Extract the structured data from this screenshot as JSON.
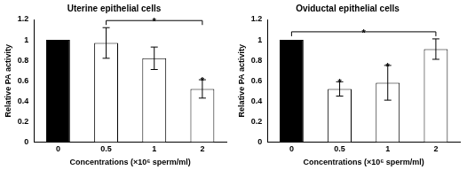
{
  "chart_data": [
    {
      "type": "bar",
      "title": "Uterine epithelial cells",
      "x_label": "Concentrations (×10⁶ sperm/ml)",
      "y_label": "Relative PA activity",
      "categories": [
        "0",
        "0.5",
        "1",
        "2"
      ],
      "values": [
        1,
        0.97,
        0.82,
        0.52
      ],
      "errors": [
        0,
        0.15,
        0.11,
        0.09
      ],
      "colors": [
        "#000000",
        "#ffffff",
        "#ffffff",
        "#ffffff"
      ],
      "ylim": [
        0,
        1.2
      ],
      "yticks": [
        0,
        0.2,
        0.4,
        0.6,
        0.8,
        1,
        1.2
      ],
      "grid": false,
      "annotations": [
        {
          "category": "2",
          "text": "*"
        }
      ],
      "brackets": [
        {
          "from": "0.5",
          "to": "2",
          "text": "*"
        }
      ]
    },
    {
      "type": "bar",
      "title": "Oviductal epithelial cells",
      "x_label": "Concentrations (×10⁶ sperm/ml)",
      "y_label": "Relative PA activity",
      "categories": [
        "0",
        "0.5",
        "1",
        "2"
      ],
      "values": [
        1,
        0.52,
        0.58,
        0.91
      ],
      "errors": [
        0,
        0.07,
        0.17,
        0.1
      ],
      "colors": [
        "#000000",
        "#ffffff",
        "#ffffff",
        "#ffffff"
      ],
      "ylim": [
        0,
        1.2
      ],
      "yticks": [
        0,
        0.2,
        0.4,
        0.6,
        0.8,
        1,
        1.2
      ],
      "grid": false,
      "annotations": [
        {
          "category": "0.5",
          "text": "*"
        },
        {
          "category": "1",
          "text": "*"
        }
      ],
      "brackets": [
        {
          "from": "0",
          "to": "2",
          "text": "*"
        }
      ]
    }
  ]
}
